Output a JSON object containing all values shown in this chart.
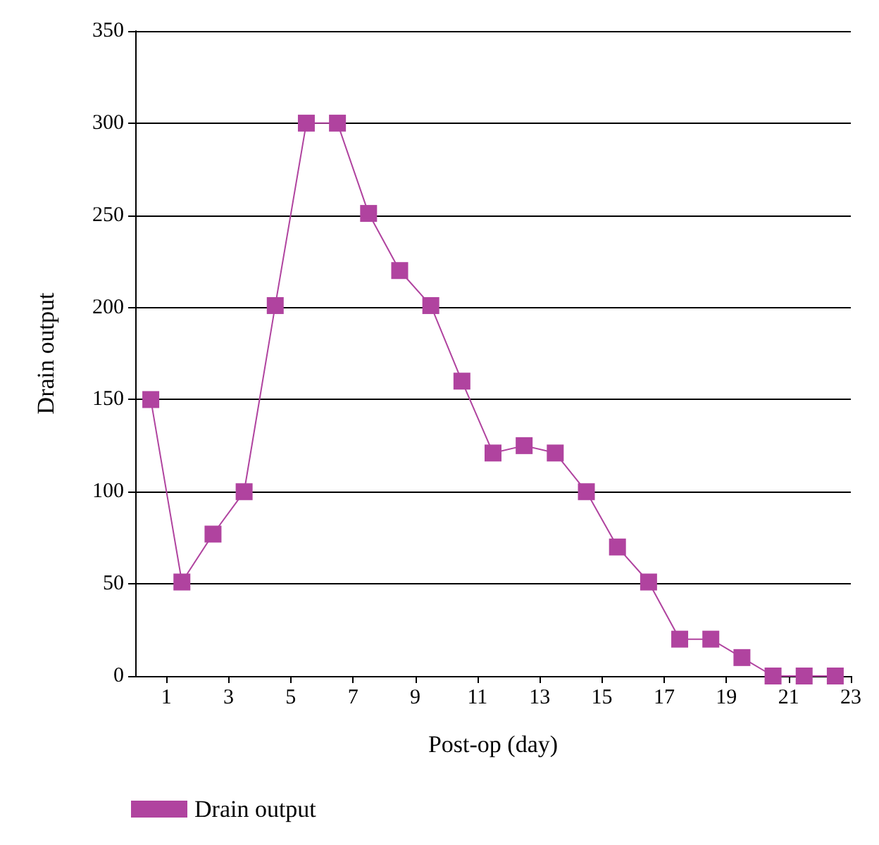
{
  "chart_data": {
    "type": "line",
    "xlabel": "Post-op (day)",
    "ylabel": "Drain output",
    "x": [
      0.5,
      1.5,
      2.5,
      3.5,
      4.5,
      5.5,
      6.5,
      7.5,
      8.5,
      9.5,
      10.5,
      11.5,
      12.5,
      13.5,
      14.5,
      15.5,
      16.5,
      17.5,
      18.5,
      19.5,
      20.5,
      21.5,
      22.5
    ],
    "series": [
      {
        "name": "Drain output",
        "color": "#b0439f",
        "values": [
          150,
          51,
          77,
          100,
          201,
          300,
          300,
          251,
          220,
          201,
          160,
          121,
          125,
          121,
          100,
          70,
          51,
          20,
          20,
          10,
          0,
          0,
          0
        ]
      }
    ],
    "xlim": [
      0,
      23
    ],
    "xticks": [
      1,
      3,
      5,
      7,
      9,
      11,
      13,
      15,
      17,
      19,
      21,
      23
    ],
    "ylim": [
      0,
      350
    ],
    "yticks": [
      0,
      50,
      100,
      150,
      200,
      250,
      300,
      350
    ],
    "grid": "y",
    "legend": "bottom left",
    "marker": "square",
    "line_style": "solid"
  }
}
